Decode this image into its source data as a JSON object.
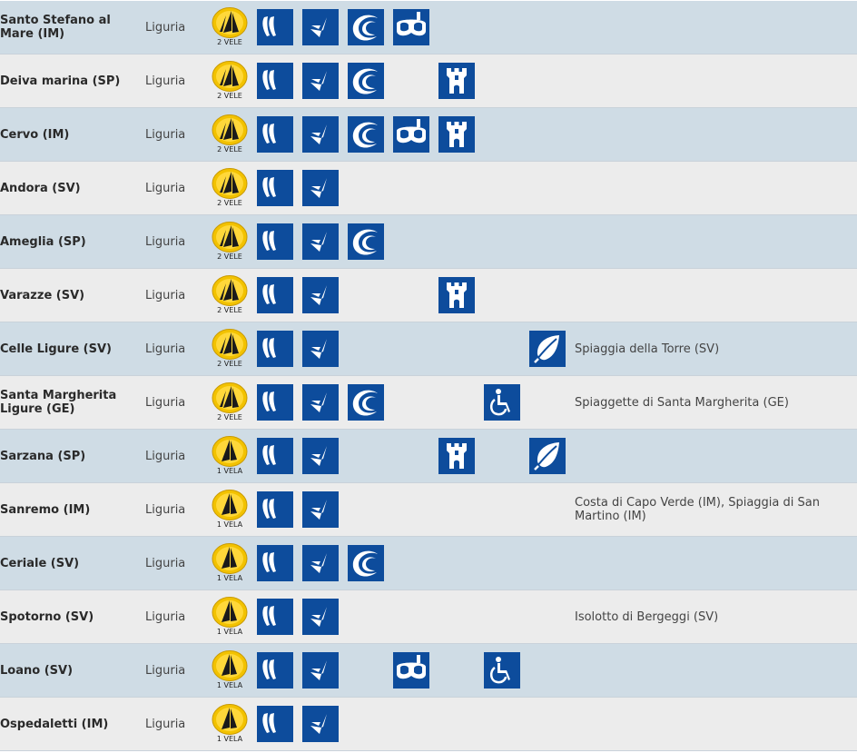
{
  "colors": {
    "row_odd": "#cfdce5",
    "row_even": "#ececec",
    "icon_bg": "#0d4c9c",
    "badge_yellow": "#f2c200"
  },
  "icon_names": {
    "c1": "waves-icon",
    "c2": "shell-icon",
    "c3": "wave-icon",
    "c4": "diving-mask-icon",
    "c5": "tower-icon",
    "c6": "wheelchair-icon",
    "c7": "leaf-icon"
  },
  "rows": [
    {
      "town": "Santo Stefano al Mare (IM)",
      "region": "Liguria",
      "sails": 2,
      "rating": "2 VELE",
      "services": [
        "c1",
        "c2",
        "c3",
        "c4"
      ],
      "places": ""
    },
    {
      "town": "Deiva marina (SP)",
      "region": "Liguria",
      "sails": 2,
      "rating": "2 VELE",
      "services": [
        "c1",
        "c2",
        "c3",
        "c5"
      ],
      "places": ""
    },
    {
      "town": "Cervo (IM)",
      "region": "Liguria",
      "sails": 2,
      "rating": "2 VELE",
      "services": [
        "c1",
        "c2",
        "c3",
        "c4",
        "c5"
      ],
      "places": ""
    },
    {
      "town": "Andora (SV)",
      "region": "Liguria",
      "sails": 2,
      "rating": "2 VELE",
      "services": [
        "c1",
        "c2"
      ],
      "places": ""
    },
    {
      "town": "Ameglia (SP)",
      "region": "Liguria",
      "sails": 2,
      "rating": "2 VELE",
      "services": [
        "c1",
        "c2",
        "c3"
      ],
      "places": ""
    },
    {
      "town": "Varazze (SV)",
      "region": "Liguria",
      "sails": 2,
      "rating": "2 VELE",
      "services": [
        "c1",
        "c2",
        "c5"
      ],
      "places": ""
    },
    {
      "town": "Celle Ligure (SV)",
      "region": "Liguria",
      "sails": 2,
      "rating": "2 VELE",
      "services": [
        "c1",
        "c2",
        "c7"
      ],
      "places": "Spiaggia della Torre (SV)"
    },
    {
      "town": "Santa Margherita Ligure (GE)",
      "region": "Liguria",
      "sails": 2,
      "rating": "2 VELE",
      "services": [
        "c1",
        "c2",
        "c3",
        "c6"
      ],
      "places": "Spiaggette di Santa Margherita (GE)"
    },
    {
      "town": "Sarzana (SP)",
      "region": "Liguria",
      "sails": 1,
      "rating": "1 VELA",
      "services": [
        "c1",
        "c2",
        "c5",
        "c7"
      ],
      "places": ""
    },
    {
      "town": "Sanremo (IM)",
      "region": "Liguria",
      "sails": 1,
      "rating": "1 VELA",
      "services": [
        "c1",
        "c2"
      ],
      "places": "Costa di Capo Verde (IM), Spiaggia di San Martino (IM)"
    },
    {
      "town": "Ceriale (SV)",
      "region": "Liguria",
      "sails": 1,
      "rating": "1 VELA",
      "services": [
        "c1",
        "c2",
        "c3"
      ],
      "places": ""
    },
    {
      "town": "Spotorno (SV)",
      "region": "Liguria",
      "sails": 1,
      "rating": "1 VELA",
      "services": [
        "c1",
        "c2"
      ],
      "places": "Isolotto di Bergeggi (SV)"
    },
    {
      "town": "Loano (SV)",
      "region": "Liguria",
      "sails": 1,
      "rating": "1 VELA",
      "services": [
        "c1",
        "c2",
        "c4",
        "c6"
      ],
      "places": ""
    },
    {
      "town": "Ospedaletti (IM)",
      "region": "Liguria",
      "sails": 1,
      "rating": "1 VELA",
      "services": [
        "c1",
        "c2"
      ],
      "places": ""
    }
  ]
}
